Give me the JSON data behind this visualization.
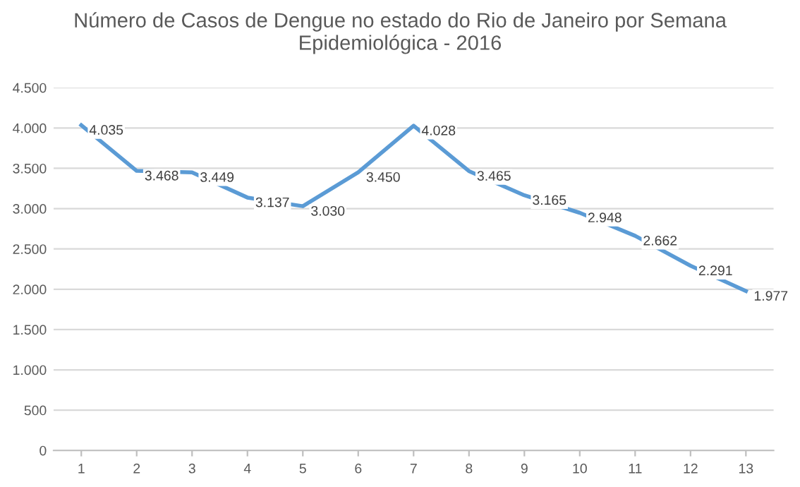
{
  "chart_data": {
    "type": "line",
    "title": "Número de Casos de Dengue no estado do Rio de Janeiro por Semana\nEpidemiológica - 2016",
    "categories": [
      "1",
      "2",
      "3",
      "4",
      "5",
      "6",
      "7",
      "8",
      "9",
      "10",
      "11",
      "12",
      "13"
    ],
    "series": [
      {
        "color": "#5b9bd5",
        "values": [
          4035,
          3468,
          3449,
          3137,
          3030,
          3450,
          4028,
          3465,
          3165,
          2948,
          2662,
          2291,
          1977
        ],
        "value_labels": [
          "4.035",
          "3.468",
          "3.449",
          "3.137",
          "3.030",
          "3.450",
          "4.028",
          "3.465",
          "3.165",
          "2.948",
          "2.662",
          "2.291",
          "1.977"
        ]
      }
    ],
    "ylim": [
      0,
      4500
    ],
    "yticks": [
      {
        "value": 0,
        "label": "0"
      },
      {
        "value": 500,
        "label": "500"
      },
      {
        "value": 1000,
        "label": "1.000"
      },
      {
        "value": 1500,
        "label": "1.500"
      },
      {
        "value": 2000,
        "label": "2.000"
      },
      {
        "value": 2500,
        "label": "2.500"
      },
      {
        "value": 3000,
        "label": "3.000"
      },
      {
        "value": 3500,
        "label": "3.500"
      },
      {
        "value": 4000,
        "label": "4.000"
      },
      {
        "value": 4500,
        "label": "4.500"
      }
    ],
    "grid": "y",
    "line_style": "solid",
    "marker": "none"
  }
}
